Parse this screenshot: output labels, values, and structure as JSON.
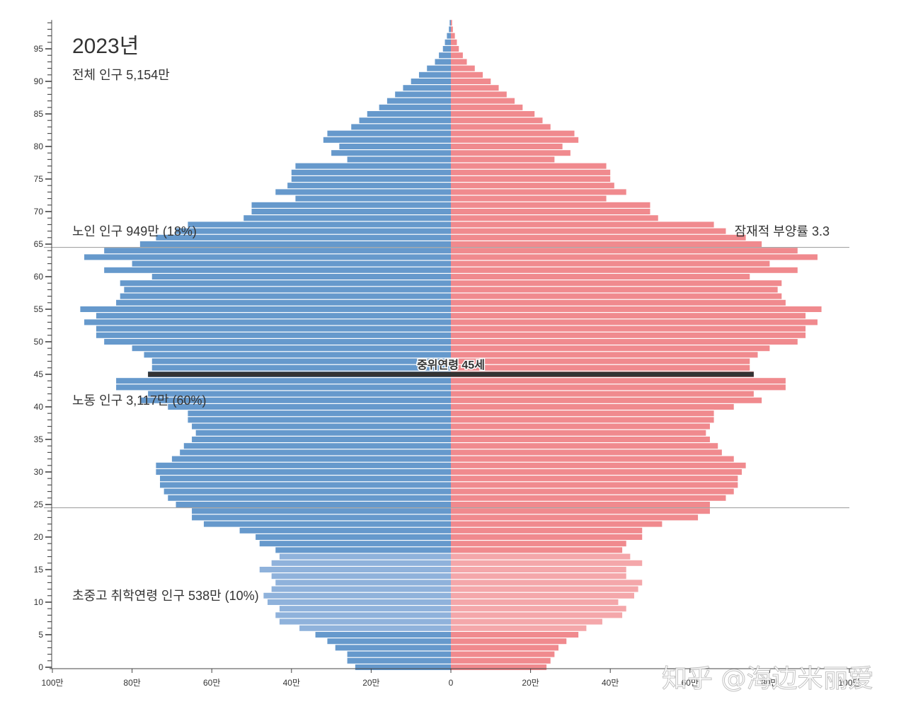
{
  "header": {
    "year": "2023년",
    "total_population": "전체 인구   5,154만"
  },
  "groups": {
    "elderly": "노인 인구   949만   (18%)",
    "working": "노동 인구   3,117만   (60%)",
    "school": "초중고 취학연령 인구   538만   (10%)"
  },
  "dependency_ratio": "잠재적 부양률 3.3",
  "median_age_label": "중위연령 45세",
  "watermark": "知乎 @海边米丽爱",
  "colors": {
    "male": "#6699cc",
    "male_school": "#8fb2db",
    "female": "#f08a8e",
    "female_school": "#f4a7aa",
    "median_line": "#333333"
  },
  "chart_data": {
    "type": "bar",
    "subtype": "population-pyramid",
    "title": "2023년",
    "y_axis": {
      "range": [
        0,
        99
      ],
      "ticks": [
        0,
        5,
        10,
        15,
        20,
        25,
        30,
        35,
        40,
        45,
        50,
        55,
        60,
        65,
        70,
        75,
        80,
        85,
        90,
        95
      ]
    },
    "x_axis": {
      "unit": "만",
      "range": [
        -100,
        100
      ],
      "ticks": [
        {
          "value": -100,
          "label": "100만"
        },
        {
          "value": -80,
          "label": "80만"
        },
        {
          "value": -60,
          "label": "60만"
        },
        {
          "value": -40,
          "label": "40만"
        },
        {
          "value": -20,
          "label": "20만"
        },
        {
          "value": 0,
          "label": "0"
        },
        {
          "value": 20,
          "label": "20만"
        },
        {
          "value": 40,
          "label": "40만"
        },
        {
          "value": 60,
          "label": "60만"
        },
        {
          "value": 80,
          "label": "80만"
        },
        {
          "value": 100,
          "label": "100만"
        }
      ]
    },
    "reference_lines": [
      64.5,
      24.5
    ],
    "median_age": 45,
    "school_age_range": [
      6,
      17
    ],
    "ages": [
      0,
      1,
      2,
      3,
      4,
      5,
      6,
      7,
      8,
      9,
      10,
      11,
      12,
      13,
      14,
      15,
      16,
      17,
      18,
      19,
      20,
      21,
      22,
      23,
      24,
      25,
      26,
      27,
      28,
      29,
      30,
      31,
      32,
      33,
      34,
      35,
      36,
      37,
      38,
      39,
      40,
      41,
      42,
      43,
      44,
      45,
      46,
      47,
      48,
      49,
      50,
      51,
      52,
      53,
      54,
      55,
      56,
      57,
      58,
      59,
      60,
      61,
      62,
      63,
      64,
      65,
      66,
      67,
      68,
      69,
      70,
      71,
      72,
      73,
      74,
      75,
      76,
      77,
      78,
      79,
      80,
      81,
      82,
      83,
      84,
      85,
      86,
      87,
      88,
      89,
      90,
      91,
      92,
      93,
      94,
      95,
      96,
      97,
      98,
      99
    ],
    "series": [
      {
        "name": "male",
        "values": [
          24,
          26,
          26,
          29,
          31,
          34,
          38,
          43,
          44,
          43,
          46,
          47,
          45,
          44,
          45,
          48,
          45,
          43,
          44,
          48,
          49,
          53,
          62,
          65,
          65,
          69,
          71,
          72,
          73,
          73,
          74,
          74,
          70,
          68,
          67,
          65,
          64,
          65,
          66,
          66,
          71,
          78,
          76,
          84,
          84,
          76,
          75,
          75,
          77,
          80,
          87,
          89,
          89,
          92,
          89,
          93,
          84,
          83,
          82,
          83,
          75,
          87,
          80,
          92,
          87,
          78,
          74,
          69,
          66,
          52,
          50,
          50,
          39,
          44,
          41,
          40,
          40,
          39,
          26,
          30,
          28,
          32,
          31,
          25,
          23,
          21,
          18,
          16,
          14,
          12,
          10,
          8,
          6,
          4,
          3,
          2,
          1.5,
          1,
          0.5,
          0.3
        ]
      },
      {
        "name": "female",
        "values": [
          24,
          25,
          26,
          27,
          29,
          32,
          34,
          38,
          43,
          44,
          42,
          46,
          47,
          48,
          44,
          44,
          48,
          45,
          43,
          44,
          48,
          48,
          53,
          62,
          65,
          65,
          69,
          71,
          72,
          72,
          73,
          74,
          71,
          68,
          67,
          65,
          64,
          65,
          66,
          66,
          71,
          78,
          76,
          84,
          84,
          76,
          75,
          75,
          77,
          80,
          87,
          89,
          89,
          92,
          89,
          93,
          84,
          83,
          82,
          83,
          75,
          87,
          80,
          92,
          87,
          78,
          74,
          69,
          66,
          52,
          50,
          50,
          39,
          44,
          41,
          40,
          40,
          39,
          26,
          30,
          28,
          32,
          31,
          25,
          23,
          21,
          18,
          16,
          14,
          12,
          10,
          8,
          6,
          4,
          3,
          2,
          1.5,
          1,
          0.5,
          0.3
        ]
      }
    ]
  }
}
